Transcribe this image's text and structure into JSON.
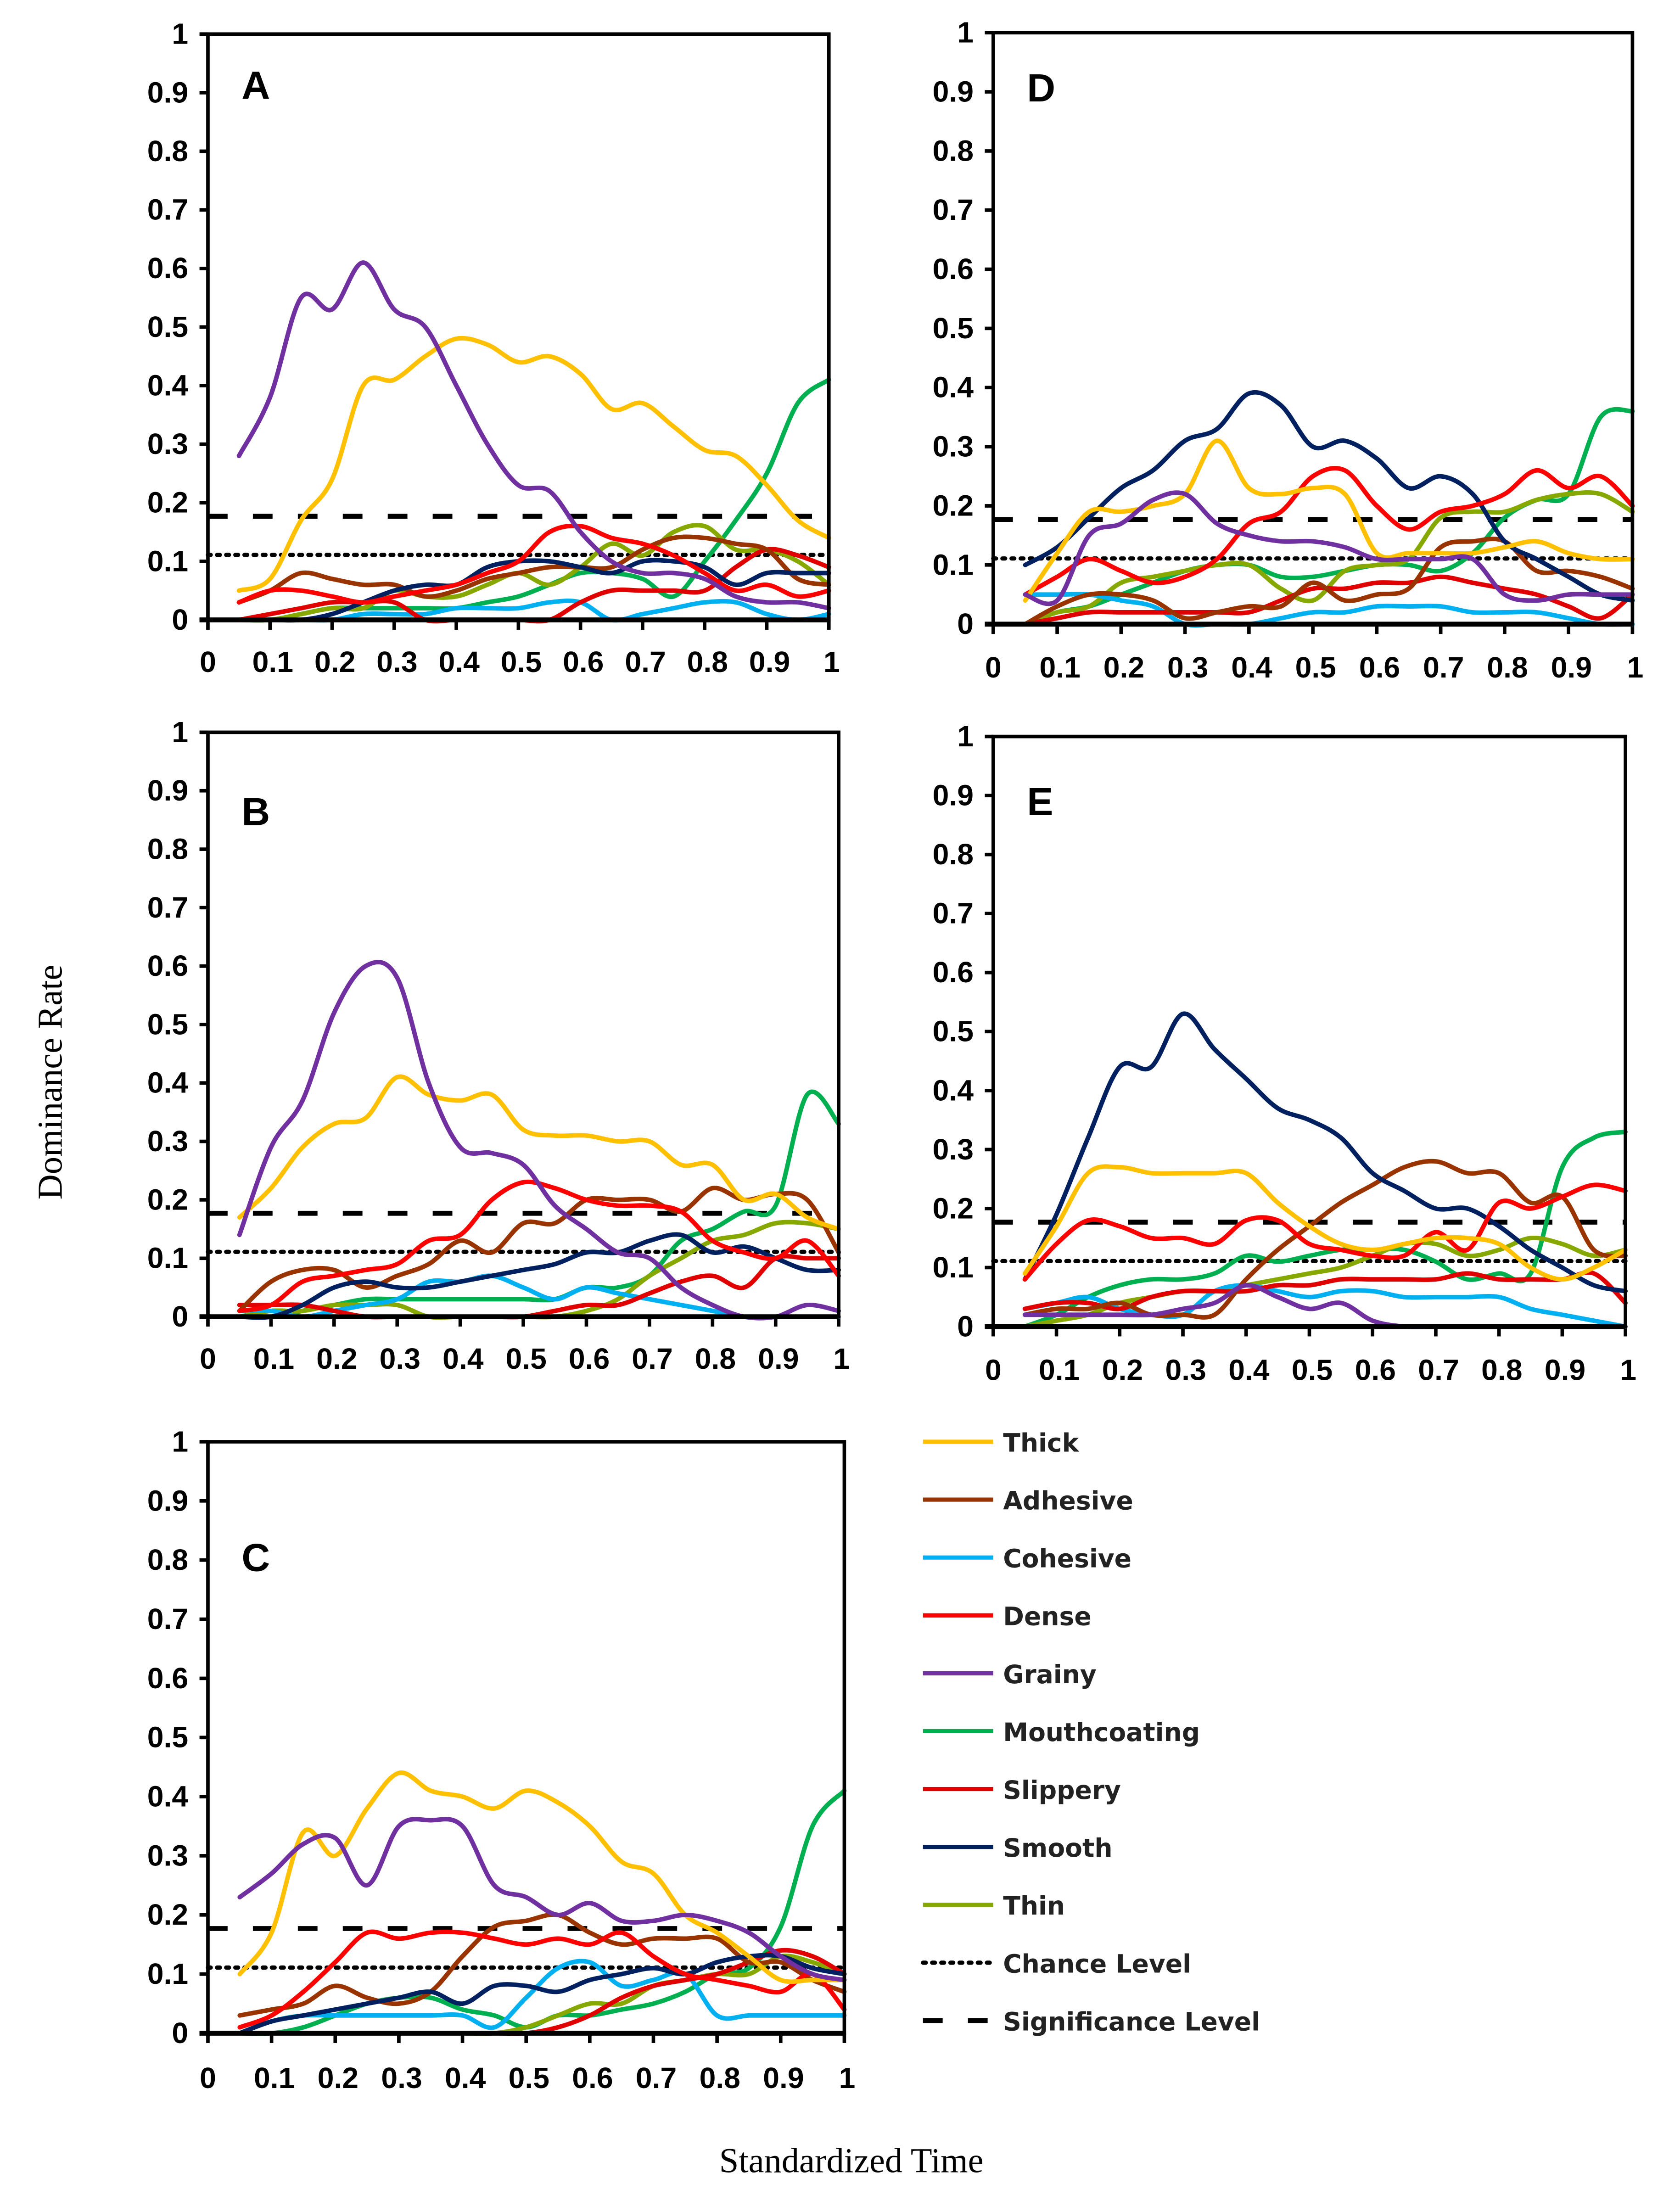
{
  "chart_data": {
    "type": "line",
    "xlabel": "Standardized Time",
    "ylabel": "Dominance Rate",
    "xlim": [
      0,
      1
    ],
    "ylim": [
      0,
      1
    ],
    "x_ticks": [
      "0",
      "0.1",
      "0.2",
      "0.3",
      "0.4",
      "0.5",
      "0.6",
      "0.7",
      "0.8",
      "0.9",
      "1"
    ],
    "y_ticks": [
      "0",
      "0.1",
      "0.2",
      "0.3",
      "0.4",
      "0.5",
      "0.6",
      "0.7",
      "0.8",
      "0.9",
      "1"
    ],
    "x": [
      0.05,
      0.1,
      0.15,
      0.2,
      0.25,
      0.3,
      0.35,
      0.4,
      0.45,
      0.5,
      0.55,
      0.6,
      0.65,
      0.7,
      0.75,
      0.8,
      0.85,
      0.9,
      0.95,
      1.0
    ],
    "chance_level": 0.111,
    "significance_level": 0.177,
    "legend": [
      {
        "name": "Thick",
        "color": "#FFC000",
        "style": "solid"
      },
      {
        "name": "Adhesive",
        "color": "#993300",
        "style": "solid"
      },
      {
        "name": "Cohesive",
        "color": "#00B0F0",
        "style": "solid"
      },
      {
        "name": "Dense",
        "color": "#FF0000",
        "style": "solid"
      },
      {
        "name": "Grainy",
        "color": "#7030A0",
        "style": "solid"
      },
      {
        "name": "Mouthcoating",
        "color": "#00B050",
        "style": "solid"
      },
      {
        "name": "Slippery",
        "color": "#E00000",
        "style": "solid"
      },
      {
        "name": "Smooth",
        "color": "#002060",
        "style": "solid"
      },
      {
        "name": "Thin",
        "color": "#86A800",
        "style": "solid"
      },
      {
        "name": "Chance Level",
        "color": "#000000",
        "style": "dotted"
      },
      {
        "name": "Significance Level",
        "color": "#000000",
        "style": "dashed"
      }
    ],
    "panels": [
      {
        "label": "A",
        "series": {
          "Thick": [
            0.05,
            0.07,
            0.17,
            0.24,
            0.4,
            0.41,
            0.45,
            0.48,
            0.47,
            0.44,
            0.45,
            0.42,
            0.36,
            0.37,
            0.33,
            0.29,
            0.28,
            0.23,
            0.17,
            0.14
          ],
          "Adhesive": [
            0.03,
            0.05,
            0.08,
            0.07,
            0.06,
            0.06,
            0.04,
            0.05,
            0.07,
            0.08,
            0.09,
            0.09,
            0.09,
            0.12,
            0.14,
            0.14,
            0.13,
            0.12,
            0.07,
            0.06
          ],
          "Cohesive": [
            0,
            0,
            0,
            0,
            0.01,
            0.01,
            0.01,
            0.02,
            0.02,
            0.02,
            0.03,
            0.03,
            0,
            0.01,
            0.02,
            0.03,
            0.03,
            0.01,
            0,
            0.01
          ],
          "Dense": [
            0.03,
            0.05,
            0.05,
            0.04,
            0.03,
            0.04,
            0.05,
            0.06,
            0.08,
            0.1,
            0.15,
            0.16,
            0.14,
            0.13,
            0.11,
            0.08,
            0.05,
            0.06,
            0.04,
            0.05
          ],
          "Grainy": [
            0.28,
            0.38,
            0.55,
            0.53,
            0.61,
            0.53,
            0.5,
            0.4,
            0.3,
            0.23,
            0.22,
            0.15,
            0.1,
            0.08,
            0.08,
            0.07,
            0.04,
            0.03,
            0.03,
            0.02
          ],
          "Mouthcoating": [
            0,
            0,
            0.01,
            0.02,
            0.02,
            0.02,
            0.02,
            0.02,
            0.03,
            0.04,
            0.06,
            0.08,
            0.08,
            0.07,
            0.04,
            0.1,
            0.17,
            0.25,
            0.37,
            0.41
          ],
          "Slippery": [
            0,
            0.01,
            0.02,
            0.03,
            0.03,
            0.03,
            0,
            0,
            0,
            0,
            0,
            0.03,
            0.05,
            0.05,
            0.05,
            0.05,
            0.09,
            0.12,
            0.11,
            0.09
          ],
          "Smooth": [
            0,
            0,
            0,
            0.01,
            0.03,
            0.05,
            0.06,
            0.06,
            0.09,
            0.1,
            0.1,
            0.09,
            0.08,
            0.1,
            0.1,
            0.09,
            0.06,
            0.08,
            0.08,
            0.08
          ],
          "Thin": [
            0,
            0,
            0.01,
            0.02,
            0.02,
            0.05,
            0.04,
            0.04,
            0.06,
            0.08,
            0.06,
            0.09,
            0.13,
            0.11,
            0.15,
            0.16,
            0.12,
            0.12,
            0.1,
            0.06
          ]
        }
      },
      {
        "label": "B",
        "series": {
          "Thick": [
            0.17,
            0.22,
            0.29,
            0.33,
            0.34,
            0.41,
            0.38,
            0.37,
            0.38,
            0.32,
            0.31,
            0.31,
            0.3,
            0.3,
            0.26,
            0.26,
            0.2,
            0.21,
            0.17,
            0.15
          ],
          "Adhesive": [
            0.01,
            0.06,
            0.08,
            0.08,
            0.05,
            0.07,
            0.09,
            0.13,
            0.11,
            0.16,
            0.16,
            0.2,
            0.2,
            0.2,
            0.18,
            0.22,
            0.2,
            0.21,
            0.2,
            0.11
          ],
          "Cohesive": [
            0.01,
            0.01,
            0,
            0.01,
            0.02,
            0.03,
            0.06,
            0.06,
            0.07,
            0.05,
            0.03,
            0.05,
            0.04,
            0.03,
            0.02,
            0.01,
            0,
            0,
            0,
            0
          ],
          "Dense": [
            0.01,
            0.02,
            0.06,
            0.07,
            0.08,
            0.09,
            0.13,
            0.14,
            0.2,
            0.23,
            0.22,
            0.2,
            0.19,
            0.19,
            0.18,
            0.13,
            0.11,
            0.1,
            0.13,
            0.07
          ],
          "Grainy": [
            0.14,
            0.29,
            0.37,
            0.52,
            0.6,
            0.58,
            0.4,
            0.29,
            0.28,
            0.26,
            0.19,
            0.15,
            0.11,
            0.1,
            0.05,
            0.02,
            0,
            0,
            0.02,
            0.01
          ],
          "Mouthcoating": [
            0,
            0,
            0.01,
            0.02,
            0.03,
            0.03,
            0.03,
            0.03,
            0.03,
            0.03,
            0.03,
            0.05,
            0.05,
            0.07,
            0.13,
            0.15,
            0.18,
            0.19,
            0.38,
            0.33
          ],
          "Slippery": [
            0.02,
            0.02,
            0.02,
            0.01,
            0,
            0,
            0,
            0,
            0,
            0,
            0.01,
            0.02,
            0.02,
            0.04,
            0.06,
            0.07,
            0.05,
            0.1,
            0.1,
            0.1
          ],
          "Smooth": [
            0,
            0,
            0.02,
            0.05,
            0.06,
            0.05,
            0.05,
            0.06,
            0.07,
            0.08,
            0.09,
            0.11,
            0.11,
            0.13,
            0.14,
            0.11,
            0.12,
            0.1,
            0.08,
            0.08
          ],
          "Thin": [
            0,
            0.01,
            0.01,
            0.02,
            0.02,
            0.02,
            0,
            0,
            0,
            0,
            0,
            0.01,
            0.03,
            0.07,
            0.1,
            0.13,
            0.14,
            0.16,
            0.16,
            0.15
          ]
        }
      },
      {
        "label": "C",
        "series": {
          "Thick": [
            0.1,
            0.17,
            0.34,
            0.3,
            0.38,
            0.44,
            0.41,
            0.4,
            0.38,
            0.41,
            0.39,
            0.35,
            0.29,
            0.27,
            0.2,
            0.17,
            0.13,
            0.09,
            0.09,
            0.09
          ],
          "Adhesive": [
            0.03,
            0.04,
            0.05,
            0.08,
            0.06,
            0.05,
            0.07,
            0.13,
            0.18,
            0.19,
            0.2,
            0.17,
            0.15,
            0.16,
            0.16,
            0.16,
            0.12,
            0.12,
            0.09,
            0.07
          ],
          "Cohesive": [
            0,
            0.02,
            0.03,
            0.03,
            0.03,
            0.03,
            0.03,
            0.03,
            0.01,
            0.06,
            0.11,
            0.12,
            0.08,
            0.09,
            0.1,
            0.03,
            0.03,
            0.03,
            0.03,
            0.03
          ],
          "Dense": [
            0.01,
            0.03,
            0.07,
            0.12,
            0.17,
            0.16,
            0.17,
            0.17,
            0.16,
            0.15,
            0.16,
            0.15,
            0.17,
            0.13,
            0.1,
            0.09,
            0.08,
            0.07,
            0.1,
            0.04
          ],
          "Grainy": [
            0.23,
            0.27,
            0.32,
            0.33,
            0.25,
            0.35,
            0.36,
            0.35,
            0.25,
            0.23,
            0.2,
            0.22,
            0.19,
            0.19,
            0.2,
            0.19,
            0.17,
            0.13,
            0.1,
            0.09
          ],
          "Mouthcoating": [
            0,
            0,
            0.01,
            0.03,
            0.05,
            0.06,
            0.06,
            0.04,
            0.03,
            0.01,
            0.03,
            0.03,
            0.04,
            0.05,
            0.07,
            0.1,
            0.11,
            0.18,
            0.35,
            0.41
          ],
          "Slippery": [
            0,
            0,
            0,
            0,
            0,
            0,
            0,
            0,
            0,
            0,
            0.01,
            0.03,
            0.06,
            0.08,
            0.09,
            0.1,
            0.12,
            0.14,
            0.13,
            0.1
          ],
          "Smooth": [
            0,
            0.02,
            0.03,
            0.04,
            0.05,
            0.06,
            0.07,
            0.05,
            0.08,
            0.08,
            0.07,
            0.09,
            0.1,
            0.11,
            0.1,
            0.12,
            0.13,
            0.13,
            0.11,
            0.1
          ],
          "Thin": [
            0,
            0,
            0,
            0,
            0,
            0,
            0,
            0,
            0,
            0.01,
            0.03,
            0.05,
            0.05,
            0.08,
            0.09,
            0.1,
            0.1,
            0.13,
            0.12,
            0.1
          ]
        }
      },
      {
        "label": "D",
        "series": {
          "Thick": [
            0.04,
            0.12,
            0.19,
            0.19,
            0.2,
            0.22,
            0.31,
            0.23,
            0.22,
            0.23,
            0.22,
            0.12,
            0.12,
            0.12,
            0.12,
            0.13,
            0.14,
            0.12,
            0.11,
            0.11
          ],
          "Adhesive": [
            0,
            0.03,
            0.05,
            0.05,
            0.04,
            0.01,
            0.02,
            0.03,
            0.03,
            0.07,
            0.04,
            0.05,
            0.06,
            0.13,
            0.14,
            0.14,
            0.09,
            0.09,
            0.08,
            0.06
          ],
          "Cohesive": [
            0.05,
            0.05,
            0.05,
            0.04,
            0.03,
            0,
            0,
            0,
            0.01,
            0.02,
            0.02,
            0.03,
            0.03,
            0.03,
            0.02,
            0.02,
            0.02,
            0.01,
            0,
            0
          ],
          "Dense": [
            0.05,
            0.08,
            0.11,
            0.09,
            0.07,
            0.08,
            0.11,
            0.17,
            0.19,
            0.25,
            0.26,
            0.2,
            0.16,
            0.19,
            0.2,
            0.22,
            0.26,
            0.23,
            0.25,
            0.2
          ],
          "Grainy": [
            0.05,
            0.04,
            0.15,
            0.17,
            0.21,
            0.22,
            0.17,
            0.15,
            0.14,
            0.14,
            0.13,
            0.11,
            0.11,
            0.11,
            0.11,
            0.05,
            0.04,
            0.05,
            0.05,
            0.05
          ],
          "Mouthcoating": [
            0,
            0.02,
            0.03,
            0.05,
            0.07,
            0.09,
            0.1,
            0.1,
            0.08,
            0.08,
            0.09,
            0.1,
            0.1,
            0.09,
            0.12,
            0.18,
            0.21,
            0.22,
            0.35,
            0.36
          ],
          "Slippery": [
            0,
            0.01,
            0.02,
            0.02,
            0.02,
            0.02,
            0.02,
            0.02,
            0.04,
            0.06,
            0.06,
            0.07,
            0.07,
            0.08,
            0.07,
            0.06,
            0.05,
            0.03,
            0.01,
            0.05
          ],
          "Smooth": [
            0.1,
            0.13,
            0.18,
            0.23,
            0.26,
            0.31,
            0.33,
            0.39,
            0.37,
            0.3,
            0.31,
            0.28,
            0.23,
            0.25,
            0.22,
            0.14,
            0.11,
            0.08,
            0.05,
            0.04
          ],
          "Thin": [
            0,
            0.02,
            0.03,
            0.07,
            0.08,
            0.09,
            0.1,
            0.1,
            0.06,
            0.04,
            0.09,
            0.1,
            0.11,
            0.18,
            0.19,
            0.19,
            0.21,
            0.22,
            0.22,
            0.19
          ]
        }
      },
      {
        "label": "E",
        "series": {
          "Thick": [
            0.09,
            0.17,
            0.26,
            0.27,
            0.26,
            0.26,
            0.26,
            0.26,
            0.21,
            0.17,
            0.14,
            0.13,
            0.14,
            0.15,
            0.15,
            0.14,
            0.1,
            0.08,
            0.1,
            0.13
          ],
          "Adhesive": [
            0.02,
            0.03,
            0.03,
            0.04,
            0.02,
            0.02,
            0.02,
            0.08,
            0.13,
            0.17,
            0.21,
            0.24,
            0.27,
            0.28,
            0.26,
            0.26,
            0.21,
            0.22,
            0.13,
            0.12
          ],
          "Cohesive": [
            0.03,
            0.04,
            0.05,
            0.03,
            0.02,
            0.02,
            0.06,
            0.07,
            0.06,
            0.05,
            0.06,
            0.06,
            0.05,
            0.05,
            0.05,
            0.05,
            0.03,
            0.02,
            0.01,
            0
          ],
          "Dense": [
            0.08,
            0.14,
            0.18,
            0.17,
            0.15,
            0.15,
            0.14,
            0.18,
            0.18,
            0.14,
            0.13,
            0.12,
            0.12,
            0.16,
            0.13,
            0.21,
            0.2,
            0.22,
            0.24,
            0.23
          ],
          "Grainy": [
            0.02,
            0.02,
            0.02,
            0.02,
            0.02,
            0.03,
            0.04,
            0.07,
            0.05,
            0.03,
            0.04,
            0.01,
            0,
            0,
            0,
            0,
            0,
            0,
            0,
            0
          ],
          "Mouthcoating": [
            0,
            0.02,
            0.05,
            0.07,
            0.08,
            0.08,
            0.09,
            0.12,
            0.11,
            0.12,
            0.13,
            0.13,
            0.13,
            0.11,
            0.08,
            0.09,
            0.09,
            0.27,
            0.32,
            0.33
          ],
          "Slippery": [
            0.03,
            0.04,
            0.04,
            0.03,
            0.05,
            0.06,
            0.06,
            0.06,
            0.07,
            0.07,
            0.08,
            0.08,
            0.08,
            0.08,
            0.09,
            0.08,
            0.08,
            0.08,
            0.09,
            0.04
          ],
          "Smooth": [
            0.08,
            0.19,
            0.32,
            0.44,
            0.44,
            0.53,
            0.47,
            0.42,
            0.37,
            0.35,
            0.32,
            0.26,
            0.23,
            0.2,
            0.2,
            0.17,
            0.13,
            0.1,
            0.07,
            0.06
          ],
          "Thin": [
            0,
            0.01,
            0.02,
            0.04,
            0.05,
            0.06,
            0.06,
            0.07,
            0.08,
            0.09,
            0.1,
            0.12,
            0.14,
            0.14,
            0.12,
            0.13,
            0.15,
            0.14,
            0.12,
            0.13
          ]
        }
      }
    ]
  }
}
